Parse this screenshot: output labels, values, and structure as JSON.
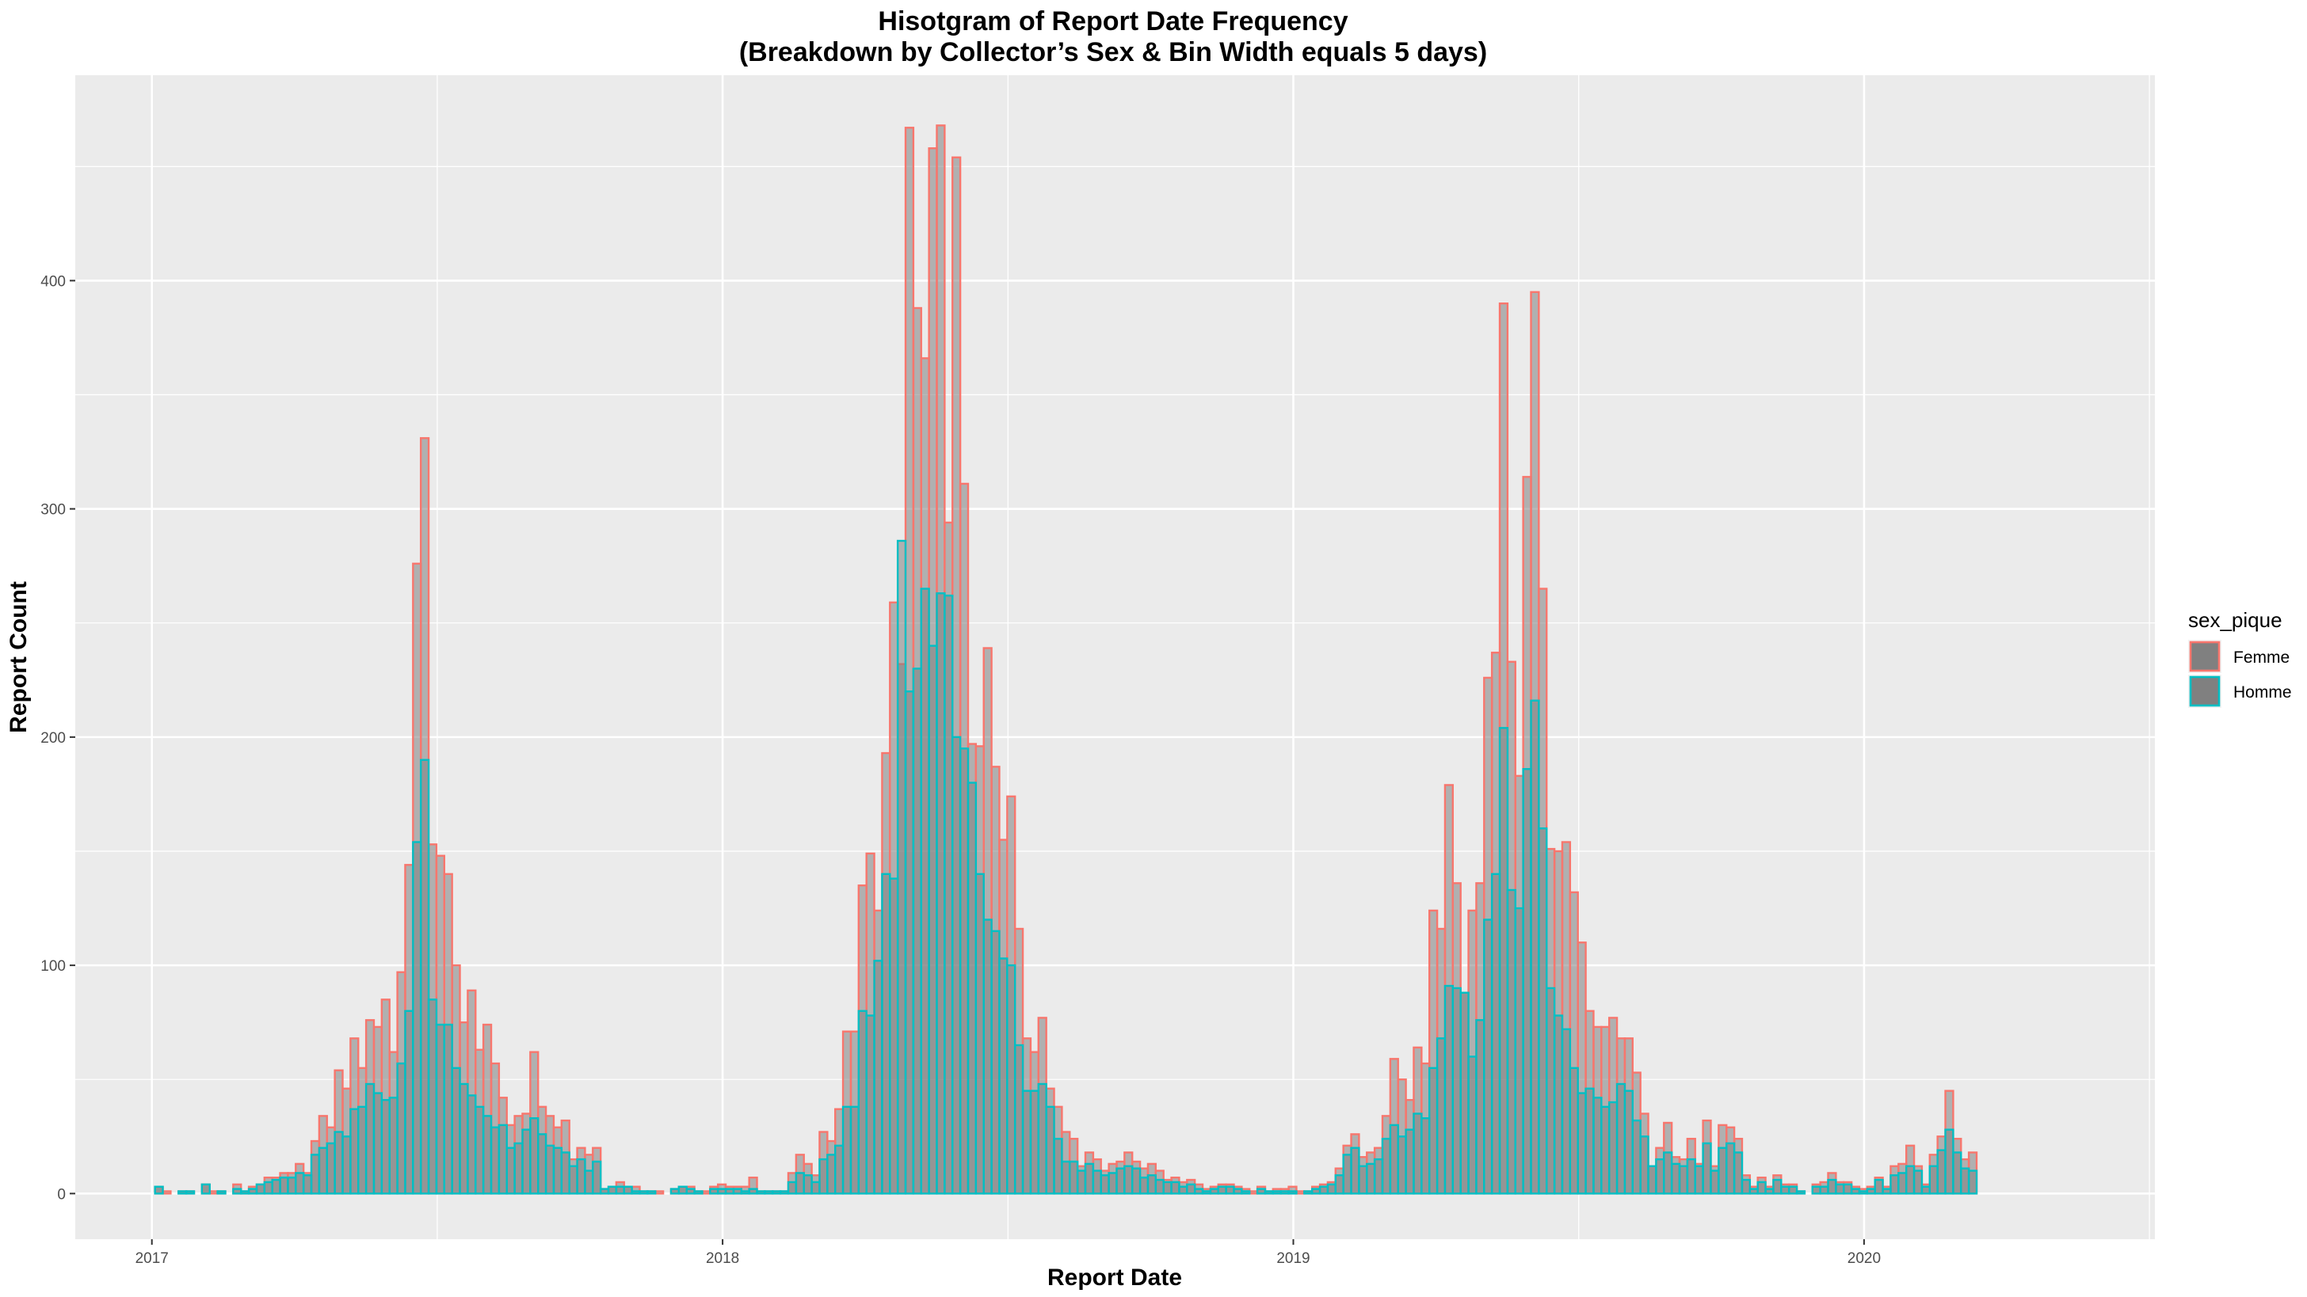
{
  "chart_data": {
    "type": "bar",
    "subtype": "overlaid histogram",
    "title": "Hisotgram of Report Date Frequency",
    "subtitle": "(Breakdown by Collector’s Sex & Bin Width equals 5 days)",
    "xlabel": "Report Date",
    "ylabel": "Report Count",
    "x_ticks": [
      "2017",
      "2018",
      "2019",
      "2020"
    ],
    "y_ticks": [
      "0",
      "100",
      "200",
      "300",
      "400"
    ],
    "xlim": [
      "2016-11-13",
      "2020-07-05"
    ],
    "ylim": [
      -20,
      490
    ],
    "grid": true,
    "legend_position": "right",
    "legend_title": "sex_pique",
    "bin_width_days": 5,
    "x_start": "2017-01-03",
    "colors": {
      "panel_background": "#ebebeb",
      "grid_line": "#ffffff",
      "bar_fill": "#808080",
      "femme_outline": "#f8766d",
      "homme_outline": "#00bfc4"
    },
    "series": [
      {
        "name": "Femme",
        "color": "#f8766d",
        "values": [
          3,
          1,
          0,
          1,
          1,
          0,
          4,
          1,
          1,
          0,
          4,
          1,
          3,
          4,
          7,
          7,
          9,
          9,
          13,
          9,
          23,
          34,
          29,
          54,
          46,
          68,
          55,
          76,
          73,
          85,
          62,
          97,
          144,
          276,
          331,
          153,
          148,
          140,
          100,
          75,
          89,
          63,
          74,
          57,
          42,
          30,
          34,
          35,
          62,
          38,
          34,
          29,
          32,
          15,
          20,
          17,
          20,
          2,
          3,
          5,
          3,
          3,
          1,
          1,
          1,
          0,
          2,
          3,
          3,
          1,
          1,
          3,
          4,
          3,
          3,
          3,
          7,
          1,
          1,
          1,
          1,
          9,
          17,
          13,
          8,
          27,
          23,
          37,
          71,
          71,
          135,
          149,
          124,
          193,
          259,
          232,
          467,
          388,
          366,
          458,
          468,
          294,
          454,
          311,
          197,
          196,
          239,
          187,
          155,
          174,
          116,
          68,
          62,
          77,
          46,
          38,
          27,
          24,
          12,
          18,
          15,
          10,
          13,
          14,
          18,
          14,
          11,
          13,
          10,
          6,
          7,
          5,
          6,
          4,
          2,
          3,
          4,
          4,
          3,
          2,
          1,
          3,
          1,
          2,
          2,
          3,
          1,
          1,
          3,
          4,
          5,
          11,
          21,
          26,
          16,
          18,
          20,
          34,
          59,
          50,
          41,
          64,
          57,
          124,
          116,
          179,
          136,
          88,
          124,
          136,
          226,
          237,
          390,
          233,
          183,
          314,
          395,
          265,
          151,
          150,
          154,
          132,
          110,
          80,
          73,
          73,
          77,
          68,
          68,
          53,
          35,
          12,
          20,
          31,
          16,
          15,
          24,
          13,
          32,
          12,
          30,
          29,
          24,
          8,
          3,
          7,
          3,
          8,
          4,
          4,
          1,
          0,
          4,
          5,
          9,
          5,
          5,
          3,
          2,
          3,
          7,
          3,
          12,
          13,
          21,
          12,
          4,
          17,
          25,
          45,
          24,
          15,
          18
        ]
      },
      {
        "name": "Homme",
        "color": "#00bfc4",
        "values": [
          3,
          0,
          0,
          1,
          1,
          0,
          4,
          0,
          1,
          0,
          2,
          1,
          2,
          4,
          5,
          6,
          7,
          7,
          9,
          8,
          17,
          20,
          22,
          27,
          25,
          37,
          38,
          48,
          44,
          41,
          42,
          57,
          80,
          154,
          190,
          85,
          74,
          74,
          55,
          48,
          43,
          38,
          34,
          29,
          30,
          20,
          22,
          28,
          33,
          26,
          21,
          20,
          18,
          12,
          15,
          10,
          14,
          2,
          3,
          3,
          3,
          1,
          1,
          1,
          0,
          0,
          2,
          3,
          2,
          1,
          0,
          2,
          2,
          2,
          2,
          1,
          2,
          1,
          1,
          1,
          1,
          5,
          9,
          8,
          5,
          15,
          17,
          21,
          38,
          38,
          80,
          78,
          102,
          140,
          138,
          286,
          220,
          230,
          265,
          240,
          263,
          262,
          200,
          195,
          180,
          140,
          120,
          115,
          103,
          100,
          65,
          45,
          45,
          48,
          38,
          24,
          14,
          14,
          10,
          13,
          10,
          8,
          9,
          11,
          12,
          11,
          7,
          8,
          6,
          5,
          5,
          3,
          4,
          2,
          1,
          2,
          3,
          3,
          2,
          1,
          0,
          2,
          1,
          1,
          1,
          1,
          0,
          1,
          2,
          3,
          4,
          8,
          17,
          20,
          12,
          13,
          15,
          24,
          30,
          25,
          28,
          35,
          33,
          55,
          68,
          91,
          90,
          88,
          60,
          76,
          120,
          140,
          204,
          133,
          125,
          186,
          216,
          160,
          90,
          78,
          72,
          55,
          44,
          46,
          42,
          38,
          40,
          48,
          45,
          32,
          25,
          12,
          15,
          18,
          13,
          12,
          15,
          12,
          22,
          10,
          20,
          22,
          18,
          6,
          2,
          5,
          2,
          6,
          3,
          3,
          1,
          0,
          3,
          3,
          6,
          4,
          4,
          2,
          1,
          2,
          6,
          2,
          8,
          9,
          12,
          10,
          3,
          12,
          19,
          28,
          18,
          11,
          10
        ]
      }
    ]
  }
}
